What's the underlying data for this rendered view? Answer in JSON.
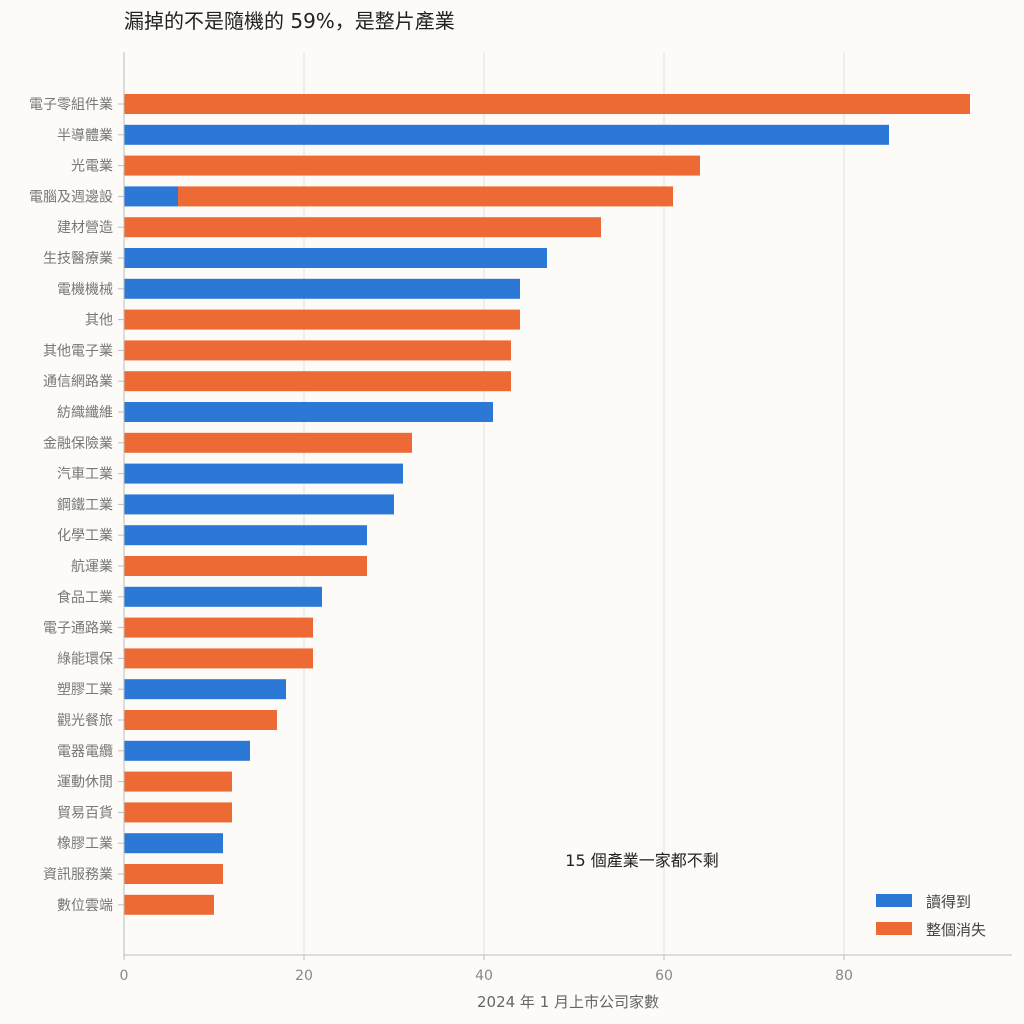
{
  "chart_data": {
    "type": "bar",
    "orientation": "horizontal",
    "stacked": true,
    "title": "漏掉的不是隨機的 59%，是整片產業",
    "xlabel": "2024 年 1 月上市公司家數",
    "ylabel": "",
    "xlim": [
      0,
      98
    ],
    "xticks": [
      0,
      20,
      40,
      60,
      80
    ],
    "grid": "vertical",
    "legend_position": "bottom-right",
    "annotation": "15 個產業一家都不剩",
    "colors": {
      "read": "#2b78d6",
      "missing": "#ee6a35"
    },
    "series_names": {
      "read": "讀得到",
      "missing": "整個消失"
    },
    "categories": [
      {
        "label": "電子零組件業",
        "read": 0,
        "missing": 94
      },
      {
        "label": "半導體業",
        "read": 85,
        "missing": 0
      },
      {
        "label": "光電業",
        "read": 0,
        "missing": 64
      },
      {
        "label": "電腦及週邊設",
        "read": 6,
        "missing": 55
      },
      {
        "label": "建材營造",
        "read": 0,
        "missing": 53
      },
      {
        "label": "生技醫療業",
        "read": 47,
        "missing": 0
      },
      {
        "label": "電機機械",
        "read": 44,
        "missing": 0
      },
      {
        "label": "其他",
        "read": 0,
        "missing": 44
      },
      {
        "label": "其他電子業",
        "read": 0,
        "missing": 43
      },
      {
        "label": "通信網路業",
        "read": 0,
        "missing": 43
      },
      {
        "label": "紡織纖維",
        "read": 41,
        "missing": 0
      },
      {
        "label": "金融保險業",
        "read": 0,
        "missing": 32
      },
      {
        "label": "汽車工業",
        "read": 31,
        "missing": 0
      },
      {
        "label": "鋼鐵工業",
        "read": 30,
        "missing": 0
      },
      {
        "label": "化學工業",
        "read": 27,
        "missing": 0
      },
      {
        "label": "航運業",
        "read": 0,
        "missing": 27
      },
      {
        "label": "食品工業",
        "read": 22,
        "missing": 0
      },
      {
        "label": "電子通路業",
        "read": 0,
        "missing": 21
      },
      {
        "label": "綠能環保",
        "read": 0,
        "missing": 21
      },
      {
        "label": "塑膠工業",
        "read": 18,
        "missing": 0
      },
      {
        "label": "觀光餐旅",
        "read": 0,
        "missing": 17
      },
      {
        "label": "電器電纜",
        "read": 14,
        "missing": 0
      },
      {
        "label": "運動休閒",
        "read": 0,
        "missing": 12
      },
      {
        "label": "貿易百貨",
        "read": 0,
        "missing": 12
      },
      {
        "label": "橡膠工業",
        "read": 11,
        "missing": 0
      },
      {
        "label": "資訊服務業",
        "read": 0,
        "missing": 11
      },
      {
        "label": "數位雲端",
        "read": 0,
        "missing": 10
      }
    ]
  }
}
